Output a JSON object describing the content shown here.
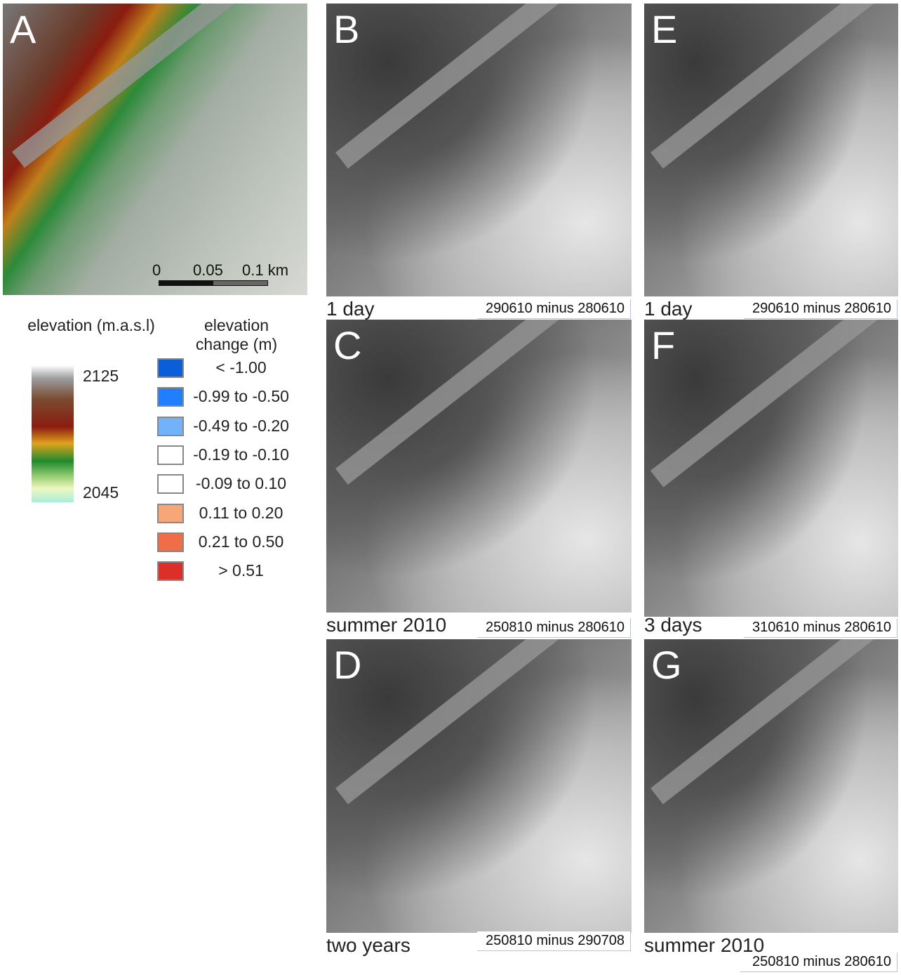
{
  "panels": [
    {
      "letter": "A"
    },
    {
      "letter": "B",
      "caption": "1 day",
      "subtitle": "290610 minus 280610"
    },
    {
      "letter": "C",
      "caption": "summer 2010",
      "subtitle": "250810 minus 280610"
    },
    {
      "letter": "D",
      "caption": "two years",
      "subtitle": "250810 minus 290708"
    },
    {
      "letter": "E",
      "caption": "1 day",
      "subtitle": "290610 minus 280610"
    },
    {
      "letter": "F",
      "caption": "3 days",
      "subtitle": "310610 minus 280610"
    },
    {
      "letter": "G",
      "caption": "summer 2010",
      "subtitle": "250810 minus 280610"
    }
  ],
  "scale_bar": {
    "labels": [
      "0",
      "0.05",
      "0.1 km"
    ]
  },
  "elevation_legend": {
    "title": "elevation (m.a.s.l)",
    "max": "2125",
    "min": "2045"
  },
  "change_legend": {
    "title": "elevation change (m)",
    "items": [
      {
        "label": "< -1.00",
        "color": "#0a5fd8"
      },
      {
        "label": "-0.99 to -0.50",
        "color": "#1f7fff"
      },
      {
        "label": "-0.49 to -0.20",
        "color": "#74b1fb"
      },
      {
        "label": "-0.19 to -0.10",
        "color": "#ffffff"
      },
      {
        "label": "-0.09 to 0.10",
        "color": "#ffffff"
      },
      {
        "label": "0.11 to 0.20",
        "color": "#f6a677"
      },
      {
        "label": "0.21 to 0.50",
        "color": "#ef6e48"
      },
      {
        "label": "> 0.51",
        "color": "#dc2f2a"
      }
    ]
  }
}
